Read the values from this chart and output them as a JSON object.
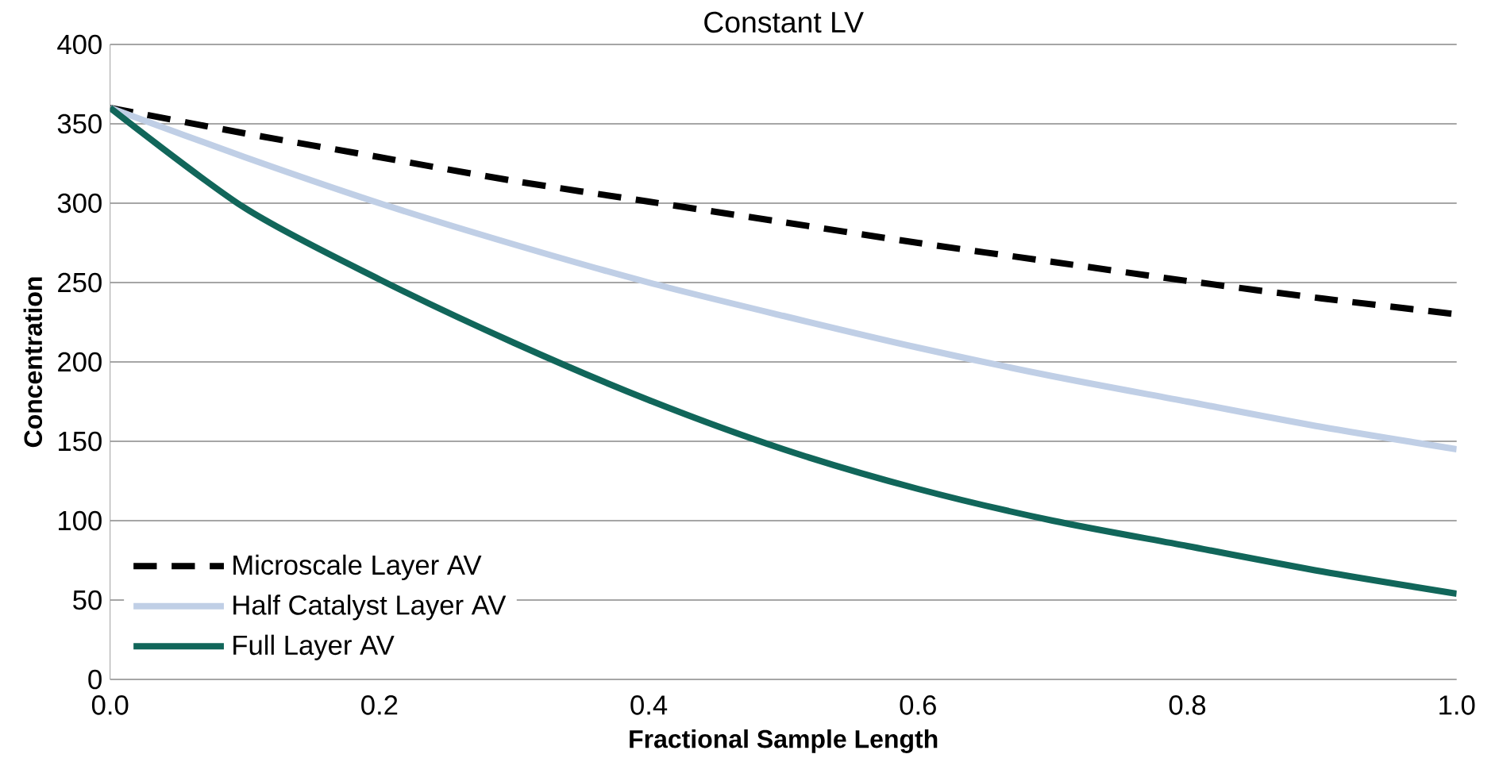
{
  "chart_data": {
    "type": "line",
    "title": "Constant LV",
    "xlabel": "Fractional Sample Length",
    "ylabel": "Concentration",
    "x": [
      0,
      0.1,
      0.2,
      0.3,
      0.4,
      0.5,
      0.6,
      0.7,
      0.8,
      0.9,
      1.0
    ],
    "series": [
      {
        "name": "Microscale Layer AV",
        "color": "#000000",
        "line_style": "dashed",
        "values": [
          360,
          344,
          329,
          314,
          301,
          288,
          275,
          263,
          251,
          240,
          230
        ]
      },
      {
        "name": "Half Catalyst Layer AV",
        "color": "#c0cfe6",
        "line_style": "solid",
        "values": [
          360,
          329,
          300,
          274,
          250,
          229,
          209,
          191,
          175,
          159,
          145
        ]
      },
      {
        "name": "Full Layer AV",
        "color": "#11665a",
        "line_style": "solid",
        "values": [
          360,
          297,
          252,
          212,
          176,
          145,
          120,
          100,
          84,
          68,
          54
        ]
      }
    ],
    "xlim": [
      0,
      1
    ],
    "xticks": [
      {
        "value": 0,
        "label": "0.0"
      },
      0.2,
      0.4,
      0.6,
      0.8,
      {
        "value": 1,
        "label": "1.0"
      }
    ],
    "ylim": [
      0,
      400
    ],
    "yticks": [
      0,
      50,
      100,
      150,
      200,
      250,
      300,
      350,
      400
    ],
    "grid": "y",
    "legend": "bottom left",
    "marker": "none"
  }
}
